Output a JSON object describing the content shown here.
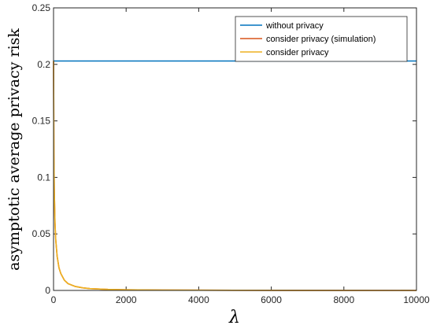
{
  "chart_data": {
    "type": "line",
    "xlabel": "λ",
    "ylabel": "asymptotic average privacy risk",
    "xlim": [
      0,
      10000
    ],
    "ylim": [
      0,
      0.25
    ],
    "xticks": [
      0,
      2000,
      4000,
      6000,
      8000,
      10000
    ],
    "yticks": [
      0,
      0.05,
      0.1,
      0.15,
      0.2,
      0.25
    ],
    "xtick_labels": [
      "0",
      "2000",
      "4000",
      "6000",
      "8000",
      "10000"
    ],
    "ytick_labels": [
      "0",
      "0.05",
      "0.1",
      "0.15",
      "0.2",
      "0.25"
    ],
    "grid": false,
    "legend_position": "top-right",
    "series": [
      {
        "name": "without privacy",
        "color": "#0072BD",
        "x": [
          0,
          10000
        ],
        "y": [
          0.203,
          0.203
        ]
      },
      {
        "name": "consider privacy (simulation)",
        "color": "#D95319",
        "x": [
          1,
          10,
          20,
          40,
          60,
          100,
          150,
          200,
          300,
          400,
          600,
          800,
          1000,
          1500,
          2000,
          3000,
          5000,
          10000
        ],
        "y": [
          0.203,
          0.12,
          0.09,
          0.06,
          0.045,
          0.03,
          0.02,
          0.015,
          0.009,
          0.006,
          0.0035,
          0.0023,
          0.0016,
          0.0009,
          0.0006,
          0.0003,
          0.0001,
          0.0
        ]
      },
      {
        "name": "consider privacy",
        "color": "#EDB120",
        "x": [
          1,
          10,
          20,
          40,
          60,
          100,
          150,
          200,
          300,
          400,
          600,
          800,
          1000,
          1500,
          2000,
          3000,
          5000,
          10000
        ],
        "y": [
          0.203,
          0.12,
          0.09,
          0.06,
          0.045,
          0.03,
          0.02,
          0.015,
          0.009,
          0.006,
          0.0035,
          0.0023,
          0.0016,
          0.0009,
          0.0006,
          0.0003,
          0.0001,
          0.0
        ]
      }
    ]
  }
}
